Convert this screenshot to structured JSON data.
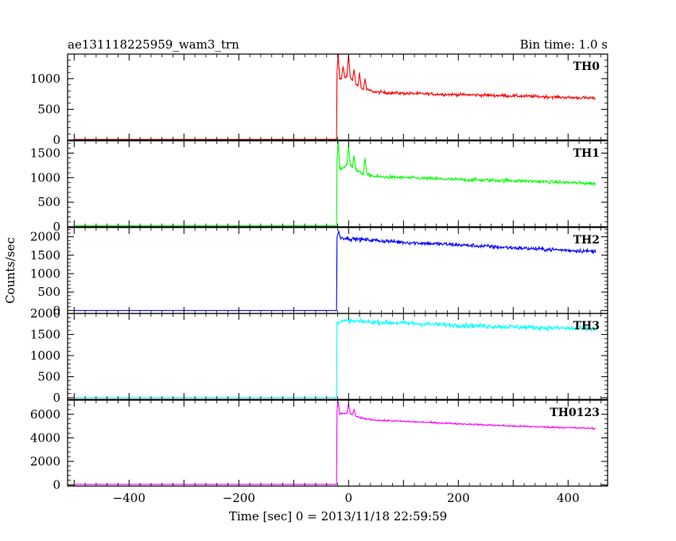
{
  "header": {
    "title": "ae131118225959_wam3_trn",
    "bin_time": "Bin time: 1.0 s"
  },
  "colors": {
    "TH0": "#ff0000",
    "TH1": "#00ff00",
    "TH2": "#0000ff",
    "TH3": "#00ffff",
    "TH0123": "#ff00ff",
    "axes": "#000000",
    "background": "#ffffff"
  },
  "chart_data": {
    "type": "line",
    "title": "ae131118225959_wam3_trn",
    "subtitle": "Bin time: 1.0 s",
    "xlabel": "Time [sec] 0 = 2013/11/18 22:59:59",
    "ylabel": "Counts/sec",
    "xlim": [
      -512,
      472
    ],
    "x_ticks": [
      -400,
      -200,
      0,
      200,
      400
    ],
    "x_tick_labels": [
      "−400",
      "−200",
      "0",
      "200",
      "400"
    ],
    "x_data_range": [
      -500,
      450
    ],
    "trigger_time": -21,
    "grid": false,
    "panels": [
      {
        "name": "TH0",
        "color": "#ff0000",
        "ylim": [
          0,
          1400
        ],
        "y_ticks": [
          0,
          500,
          1000
        ],
        "y_tick_labels": [
          "0",
          "500",
          "1000"
        ],
        "pre_trigger": 10,
        "profile": [
          [
            -21,
            950
          ],
          [
            -15,
            1000
          ],
          [
            0,
            1050
          ],
          [
            20,
            850
          ],
          [
            50,
            780
          ],
          [
            100,
            760
          ],
          [
            200,
            740
          ],
          [
            300,
            720
          ],
          [
            450,
            680
          ]
        ],
        "spikes": [
          [
            -19,
            1400
          ],
          [
            -10,
            1200
          ],
          [
            0,
            1380
          ],
          [
            10,
            1150
          ],
          [
            20,
            1100
          ],
          [
            30,
            1000
          ]
        ],
        "noise": 25
      },
      {
        "name": "TH1",
        "color": "#00ff00",
        "ylim": [
          0,
          1750
        ],
        "y_ticks": [
          0,
          500,
          1000,
          1500
        ],
        "y_tick_labels": [
          "0",
          "500",
          "1000",
          "1500"
        ],
        "pre_trigger": 20,
        "profile": [
          [
            -21,
            1150
          ],
          [
            -10,
            1200
          ],
          [
            0,
            1300
          ],
          [
            20,
            1100
          ],
          [
            50,
            1020
          ],
          [
            100,
            1000
          ],
          [
            200,
            960
          ],
          [
            300,
            940
          ],
          [
            450,
            880
          ]
        ],
        "spikes": [
          [
            -19,
            1750
          ],
          [
            0,
            1650
          ],
          [
            10,
            1450
          ],
          [
            30,
            1400
          ]
        ],
        "noise": 35
      },
      {
        "name": "TH2",
        "color": "#0000ff",
        "ylim": [
          -80,
          2250
        ],
        "y_ticks": [
          0,
          500,
          1000,
          1500,
          2000
        ],
        "y_tick_labels": [
          "0",
          "500",
          "1000",
          "1500",
          "2000"
        ],
        "pre_trigger": 0,
        "profile": [
          [
            -21,
            2000
          ],
          [
            0,
            1950
          ],
          [
            100,
            1850
          ],
          [
            200,
            1780
          ],
          [
            300,
            1700
          ],
          [
            450,
            1600
          ]
        ],
        "spikes": [
          [
            -18,
            2150
          ]
        ],
        "noise": 55
      },
      {
        "name": "TH3",
        "color": "#00ffff",
        "ylim": [
          -40,
          2000
        ],
        "y_ticks": [
          0,
          500,
          1000,
          1500,
          2000
        ],
        "y_tick_labels": [
          "0",
          "500",
          "1000",
          "1500",
          "2000"
        ],
        "pre_trigger": 0,
        "profile": [
          [
            -21,
            1800
          ],
          [
            0,
            1820
          ],
          [
            100,
            1770
          ],
          [
            200,
            1720
          ],
          [
            300,
            1680
          ],
          [
            450,
            1630
          ]
        ],
        "spikes": [],
        "noise": 55
      },
      {
        "name": "TH0123",
        "color": "#ff00ff",
        "ylim": [
          -100,
          7200
        ],
        "y_ticks": [
          0,
          2000,
          4000,
          6000
        ],
        "y_tick_labels": [
          "0",
          "2000",
          "4000",
          "6000"
        ],
        "pre_trigger": 50,
        "profile": [
          [
            -21,
            6000
          ],
          [
            0,
            6100
          ],
          [
            20,
            5700
          ],
          [
            50,
            5500
          ],
          [
            100,
            5400
          ],
          [
            200,
            5200
          ],
          [
            300,
            5000
          ],
          [
            450,
            4800
          ]
        ],
        "spikes": [
          [
            -19,
            7100
          ],
          [
            0,
            6900
          ],
          [
            10,
            6400
          ]
        ],
        "noise": 70
      }
    ]
  }
}
